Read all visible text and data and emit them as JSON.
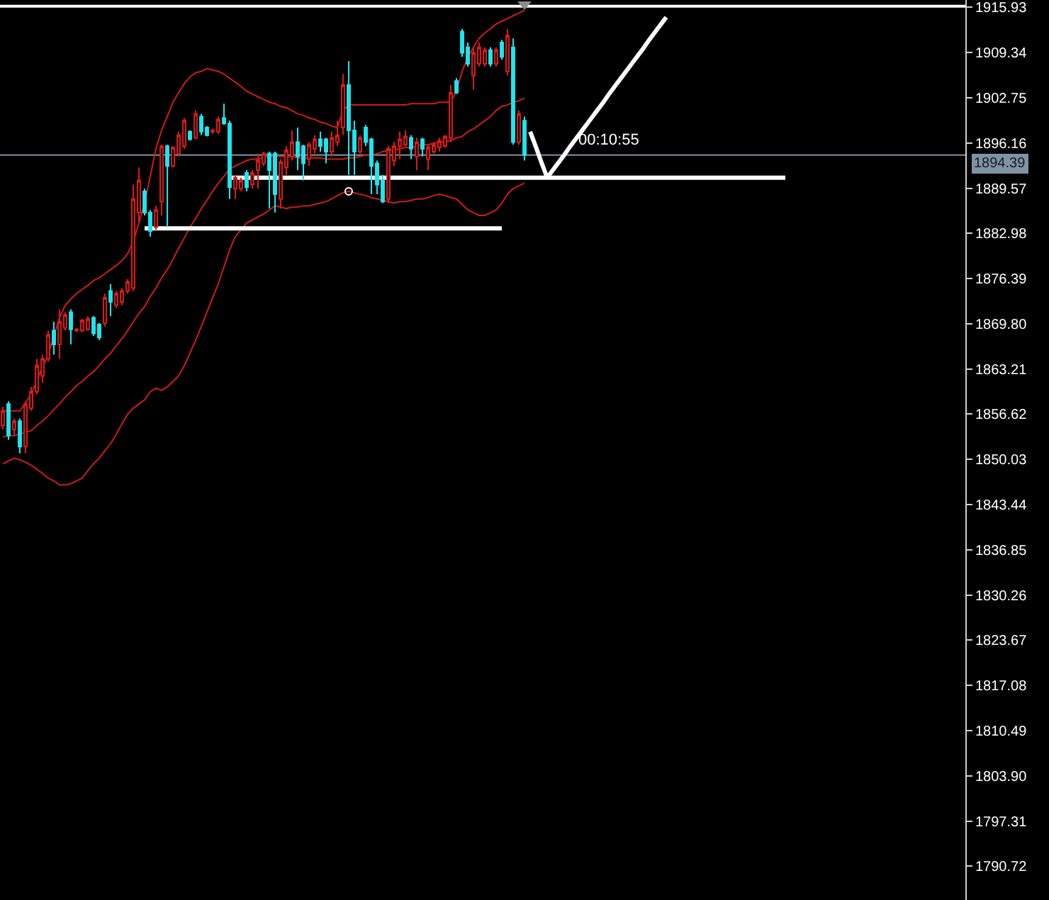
{
  "chart_data": {
    "type": "candlestick",
    "categories": [
      null,
      null,
      null,
      null,
      null,
      null,
      null,
      null,
      null,
      null,
      null,
      null,
      null,
      null,
      null,
      null,
      null,
      null,
      null,
      null,
      null,
      null,
      null,
      null,
      null,
      null,
      null,
      null,
      null,
      null,
      null,
      null,
      null,
      null,
      null,
      null,
      null,
      null,
      null,
      null,
      null,
      null,
      null,
      null,
      null,
      null,
      null,
      null,
      null,
      null,
      null,
      null,
      null,
      null,
      null,
      null,
      null,
      null,
      null,
      null,
      null,
      null,
      null,
      null,
      null,
      null,
      null,
      null,
      null,
      null,
      null,
      null,
      null,
      null,
      null,
      null,
      null,
      null,
      null,
      null,
      null,
      null,
      null,
      null,
      null,
      null,
      null,
      null,
      null,
      null,
      null,
      null,
      null,
      null,
      null,
      null,
      null,
      null,
      null,
      null,
      null,
      null,
      null,
      null,
      null,
      null,
      null,
      null,
      null,
      null,
      null,
      null,
      null,
      null,
      null,
      null,
      null,
      null,
      null,
      null,
      null,
      null,
      null,
      null,
      null,
      null,
      null,
      null,
      null,
      null,
      null,
      null,
      null,
      null,
      null,
      null,
      null,
      null,
      null
    ],
    "ohlc": [
      [
        1855.0,
        1857.7,
        1854.4,
        1857.1
      ],
      [
        1858.1,
        1858.5,
        1852.9,
        1853.5
      ],
      [
        1854.4,
        1856.0,
        1853.5,
        1855.6
      ],
      [
        1855.6,
        1856.0,
        1850.9,
        1851.9
      ],
      [
        1851.9,
        1858.5,
        1850.9,
        1858.1
      ],
      [
        1857.5,
        1860.6,
        1857.1,
        1859.9
      ],
      [
        1859.9,
        1864.7,
        1859.5,
        1863.7
      ],
      [
        1862.2,
        1865.3,
        1861.2,
        1864.7
      ],
      [
        1864.7,
        1868.8,
        1864.3,
        1868.2
      ],
      [
        1868.8,
        1870.1,
        1865.3,
        1866.8
      ],
      [
        1866.8,
        1871.9,
        1864.7,
        1870.1
      ],
      [
        1869.2,
        1871.5,
        1868.8,
        1871.1
      ],
      [
        1871.5,
        1871.9,
        1866.8,
        1869.0
      ],
      [
        1868.8,
        1869.2,
        1868.6,
        1869.0
      ],
      [
        1868.8,
        1870.5,
        1868.6,
        1870.3
      ],
      [
        1869.0,
        1870.9,
        1868.8,
        1870.5
      ],
      [
        1870.7,
        1870.9,
        1868.0,
        1868.4
      ],
      [
        1869.7,
        1869.9,
        1867.4,
        1867.8
      ],
      [
        1869.9,
        1874.2,
        1869.4,
        1873.6
      ],
      [
        1874.6,
        1875.6,
        1870.9,
        1873.0
      ],
      [
        1872.5,
        1874.6,
        1872.1,
        1874.2
      ],
      [
        1873.0,
        1875.0,
        1872.5,
        1874.6
      ],
      [
        1874.6,
        1876.3,
        1874.2,
        1875.9
      ],
      [
        1875.0,
        1890.1,
        1874.6,
        1888.0
      ],
      [
        1886.0,
        1892.6,
        1884.5,
        1890.7
      ],
      [
        1889.1,
        1889.5,
        1885.6,
        1886.0
      ],
      [
        1886.0,
        1886.4,
        1882.5,
        1883.3
      ],
      [
        1883.9,
        1887.0,
        1883.5,
        1886.4
      ],
      [
        1887.6,
        1895.9,
        1885.6,
        1895.7
      ],
      [
        1895.7,
        1895.9,
        1883.9,
        1892.8
      ],
      [
        1892.8,
        1895.7,
        1892.6,
        1895.5
      ],
      [
        1894.6,
        1897.8,
        1894.2,
        1897.3
      ],
      [
        1895.7,
        1899.8,
        1895.3,
        1899.4
      ],
      [
        1897.8,
        1898.0,
        1896.5,
        1896.7
      ],
      [
        1896.9,
        1900.9,
        1896.7,
        1900.4
      ],
      [
        1900.0,
        1900.4,
        1897.3,
        1897.8
      ],
      [
        1898.4,
        1898.6,
        1897.1,
        1897.3
      ],
      [
        1897.8,
        1898.2,
        1897.5,
        1898.0
      ],
      [
        1897.8,
        1900.0,
        1897.5,
        1899.6
      ],
      [
        1899.8,
        1901.9,
        1898.8,
        1899.0
      ],
      [
        1899.0,
        1899.4,
        1888.0,
        1889.7
      ],
      [
        1889.5,
        1891.5,
        1888.0,
        1891.1
      ],
      [
        1889.5,
        1891.1,
        1889.1,
        1890.7
      ],
      [
        1891.8,
        1892.2,
        1889.1,
        1889.7
      ],
      [
        1890.1,
        1892.2,
        1889.5,
        1891.8
      ],
      [
        1892.2,
        1894.6,
        1889.5,
        1893.6
      ],
      [
        1893.2,
        1894.9,
        1892.8,
        1894.6
      ],
      [
        1894.6,
        1894.9,
        1886.6,
        1892.2
      ],
      [
        1894.6,
        1894.9,
        1886.0,
        1888.7
      ],
      [
        1888.0,
        1893.8,
        1886.6,
        1893.4
      ],
      [
        1892.6,
        1895.7,
        1891.5,
        1895.1
      ],
      [
        1894.2,
        1898.0,
        1893.6,
        1896.3
      ],
      [
        1896.3,
        1898.4,
        1892.2,
        1894.2
      ],
      [
        1895.7,
        1895.9,
        1890.7,
        1893.2
      ],
      [
        1893.8,
        1896.3,
        1892.8,
        1895.9
      ],
      [
        1895.3,
        1897.3,
        1894.6,
        1896.7
      ],
      [
        1896.7,
        1897.8,
        1894.9,
        1895.7
      ],
      [
        1896.7,
        1896.9,
        1893.2,
        1894.9
      ],
      [
        1894.9,
        1897.8,
        1894.2,
        1896.9
      ],
      [
        1896.3,
        1899.4,
        1895.7,
        1897.3
      ],
      [
        1898.4,
        1906.2,
        1897.3,
        1904.6
      ],
      [
        1904.6,
        1908.1,
        1891.5,
        1898.0
      ],
      [
        1898.0,
        1899.4,
        1891.5,
        1894.9
      ],
      [
        1894.9,
        1897.3,
        1894.6,
        1896.9
      ],
      [
        1898.4,
        1898.8,
        1895.7,
        1896.3
      ],
      [
        1896.7,
        1896.9,
        1888.7,
        1892.8
      ],
      [
        1893.2,
        1893.6,
        1888.7,
        1890.1
      ],
      [
        1890.7,
        1891.5,
        1887.4,
        1887.6
      ],
      [
        1888.0,
        1895.7,
        1887.4,
        1895.3
      ],
      [
        1893.6,
        1896.3,
        1892.8,
        1895.7
      ],
      [
        1895.7,
        1897.8,
        1893.8,
        1896.7
      ],
      [
        1895.9,
        1898.0,
        1895.7,
        1897.1
      ],
      [
        1896.9,
        1897.3,
        1893.8,
        1895.3
      ],
      [
        1894.2,
        1896.9,
        1892.2,
        1896.3
      ],
      [
        1896.7,
        1896.9,
        1894.2,
        1895.3
      ],
      [
        1893.8,
        1895.9,
        1892.2,
        1895.5
      ],
      [
        1894.9,
        1896.3,
        1894.6,
        1895.9
      ],
      [
        1895.5,
        1896.9,
        1894.9,
        1896.5
      ],
      [
        1895.7,
        1897.3,
        1895.5,
        1897.1
      ],
      [
        1896.9,
        1904.6,
        1896.3,
        1903.5
      ],
      [
        1905.2,
        1905.6,
        1903.3,
        1903.5
      ],
      [
        1912.4,
        1912.8,
        1908.7,
        1909.3
      ],
      [
        1910.1,
        1910.8,
        1907.3,
        1907.7
      ],
      [
        1906.0,
        1910.1,
        1903.9,
        1909.3
      ],
      [
        1907.7,
        1910.8,
        1907.3,
        1910.1
      ],
      [
        1907.7,
        1910.1,
        1907.3,
        1909.7
      ],
      [
        1909.7,
        1910.1,
        1907.3,
        1907.7
      ],
      [
        1907.7,
        1910.1,
        1907.3,
        1909.7
      ],
      [
        1910.8,
        1911.2,
        1908.3,
        1908.7
      ],
      [
        1906.6,
        1912.8,
        1906.0,
        1911.8
      ],
      [
        1910.1,
        1911.4,
        1895.9,
        1896.3
      ],
      [
        1896.3,
        1900.9,
        1895.9,
        1900.4
      ],
      [
        1899.4,
        1900.0,
        1893.6,
        1894.39
      ],
      null,
      null,
      null,
      null,
      null,
      null,
      null,
      null,
      null,
      null,
      null,
      null,
      null,
      null,
      null,
      null,
      null,
      null,
      null,
      null,
      null,
      null,
      null,
      null,
      null,
      null,
      null,
      null,
      null,
      null,
      null,
      null,
      null,
      null,
      null,
      null,
      null,
      null,
      null,
      null,
      null,
      null,
      null,
      null,
      null,
      null
    ],
    "colors": [
      "#e01818",
      "#1ee6ee",
      "#e01818",
      "#1ee6ee",
      "#e01818",
      "#e01818",
      "#e01818",
      "#e01818",
      "#e01818",
      "#1ee6ee",
      "#e01818",
      "#e01818",
      "#1ee6ee",
      "#e01818",
      "#e01818",
      "#e01818",
      "#1ee6ee",
      "#1ee6ee",
      "#e01818",
      "#1ee6ee",
      "#e01818",
      "#e01818",
      "#e01818",
      "#e01818",
      "#e01818",
      "#1ee6ee",
      "#1ee6ee",
      "#e01818",
      "#e01818",
      "#1ee6ee",
      "#e01818",
      "#e01818",
      "#e01818",
      "#1ee6ee",
      "#e01818",
      "#1ee6ee",
      "#1ee6ee",
      "#e01818",
      "#e01818",
      "#1ee6ee",
      "#1ee6ee",
      "#e01818",
      "#e01818",
      "#1ee6ee",
      "#e01818",
      "#e01818",
      "#e01818",
      "#1ee6ee",
      "#1ee6ee",
      "#e01818",
      "#e01818",
      "#e01818",
      "#1ee6ee",
      "#1ee6ee",
      "#e01818",
      "#e01818",
      "#1ee6ee",
      "#1ee6ee",
      "#e01818",
      "#e01818",
      "#e01818",
      "#1ee6ee",
      "#1ee6ee",
      "#e01818",
      "#1ee6ee",
      "#1ee6ee",
      "#1ee6ee",
      "#1ee6ee",
      "#e01818",
      "#e01818",
      "#e01818",
      "#e01818",
      "#1ee6ee",
      "#e01818",
      "#1ee6ee",
      "#e01818",
      "#e01818",
      "#e01818",
      "#e01818",
      "#e01818",
      "#1ee6ee",
      "#1ee6ee",
      "#1ee6ee",
      "#e01818",
      "#e01818",
      "#e01818",
      "#1ee6ee",
      "#e01818",
      "#1ee6ee",
      "#e01818",
      "#1ee6ee",
      "#e01818",
      "#1ee6ee",
      null,
      null,
      null,
      null,
      null,
      null,
      null,
      null,
      null,
      null,
      null,
      null,
      null,
      null,
      null,
      null,
      null,
      null,
      null,
      null,
      null,
      null,
      null,
      null,
      null,
      null,
      null,
      null,
      null,
      null,
      null,
      null,
      null,
      null,
      null,
      null,
      null,
      null,
      null,
      null,
      null,
      null,
      null,
      null,
      null,
      null
    ],
    "series": [
      {
        "type": "line",
        "color": "#d01a1a",
        "values": [
          1857.1,
          1857.1,
          1857.1,
          1857.1,
          1858.3,
          1859.5,
          1861.6,
          1863.5,
          1865.3,
          1868.0,
          1870.7,
          1872.5,
          1873.4,
          1874.2,
          1874.8,
          1875.4,
          1876.1,
          1876.5,
          1877.1,
          1877.7,
          1878.3,
          1879.0,
          1880.0,
          1881.8,
          1884.5,
          1887.4,
          1891.3,
          1895.3,
          1898.0,
          1900.0,
          1902.1,
          1903.5,
          1904.8,
          1905.8,
          1906.4,
          1906.6,
          1907.0,
          1906.8,
          1906.6,
          1906.2,
          1905.6,
          1905.0,
          1904.4,
          1903.7,
          1903.3,
          1902.9,
          1902.5,
          1902.1,
          1901.9,
          1901.5,
          1901.3,
          1900.9,
          1900.4,
          1900.2,
          1899.8,
          1899.6,
          1899.2,
          1899.0,
          1898.6,
          1898.4,
          1900.9,
          1901.7,
          1901.7,
          1901.7,
          1901.7,
          1901.7,
          1901.7,
          1901.7,
          1901.7,
          1901.7,
          1901.7,
          1901.7,
          1901.9,
          1901.9,
          1901.9,
          1901.9,
          1901.9,
          1902.1,
          1902.1,
          1902.1,
          1903.7,
          1906.6,
          1908.7,
          1910.1,
          1911.4,
          1912.2,
          1912.8,
          1913.5,
          1913.9,
          1914.3,
          1914.7,
          1915.1,
          1915.5,
          null,
          null,
          null,
          null,
          null,
          null,
          null,
          null,
          null,
          null,
          null,
          null,
          null,
          null,
          null,
          null,
          null,
          null,
          null,
          null,
          null,
          null,
          null,
          null,
          null,
          null,
          null,
          null,
          null,
          null,
          null,
          null,
          null,
          null,
          null,
          null,
          null,
          null,
          null,
          null,
          null,
          null,
          null,
          null,
          null,
          null
        ]
      },
      {
        "type": "line",
        "color": "#d01a1a",
        "values": [
          1853.3,
          1853.5,
          1853.5,
          1853.7,
          1854.0,
          1854.2,
          1855.0,
          1855.6,
          1856.4,
          1857.3,
          1858.1,
          1859.1,
          1859.9,
          1860.8,
          1861.4,
          1862.2,
          1862.8,
          1863.7,
          1864.7,
          1865.5,
          1866.6,
          1867.6,
          1868.8,
          1870.1,
          1871.3,
          1872.3,
          1873.8,
          1875.0,
          1876.5,
          1877.7,
          1879.2,
          1880.8,
          1882.3,
          1883.9,
          1885.1,
          1886.6,
          1887.8,
          1889.1,
          1890.3,
          1891.3,
          1892.4,
          1892.8,
          1893.2,
          1893.6,
          1893.8,
          1893.8,
          1894.0,
          1894.2,
          1894.2,
          1894.2,
          1894.2,
          1894.2,
          1894.0,
          1894.0,
          1894.0,
          1894.0,
          1894.0,
          1893.8,
          1893.8,
          1893.8,
          1893.8,
          1894.0,
          1894.0,
          1894.2,
          1894.4,
          1894.4,
          1894.6,
          1894.9,
          1895.1,
          1895.1,
          1895.3,
          1895.5,
          1895.5,
          1895.7,
          1895.9,
          1895.9,
          1896.1,
          1896.3,
          1896.3,
          1896.5,
          1896.9,
          1897.1,
          1897.8,
          1898.2,
          1898.8,
          1899.4,
          1900.0,
          1900.9,
          1901.5,
          1901.7,
          1902.1,
          1902.3,
          1902.7,
          null,
          null,
          null,
          null,
          null,
          null,
          null,
          null,
          null,
          null,
          null,
          null,
          null,
          null,
          null,
          null,
          null,
          null,
          null,
          null,
          null,
          null,
          null,
          null,
          null,
          null,
          null,
          null,
          null,
          null,
          null,
          null,
          null,
          null,
          null,
          null,
          null,
          null,
          null,
          null,
          null,
          null,
          null,
          null,
          null,
          null
        ]
      },
      {
        "type": "line",
        "color": "#d01a1a",
        "values": [
          1849.4,
          1849.8,
          1850.2,
          1850.0,
          1849.6,
          1849.2,
          1848.6,
          1848.0,
          1847.3,
          1846.9,
          1846.3,
          1846.3,
          1846.5,
          1846.9,
          1847.3,
          1848.4,
          1849.4,
          1850.2,
          1851.3,
          1852.3,
          1853.7,
          1855.2,
          1856.6,
          1857.5,
          1858.1,
          1858.7,
          1859.9,
          1860.4,
          1860.1,
          1860.6,
          1861.4,
          1862.2,
          1863.7,
          1865.5,
          1867.4,
          1869.4,
          1871.5,
          1873.6,
          1875.6,
          1878.1,
          1880.6,
          1882.5,
          1883.5,
          1884.5,
          1884.9,
          1885.4,
          1885.8,
          1886.4,
          1887.0,
          1886.8,
          1886.6,
          1886.8,
          1886.8,
          1887.0,
          1887.0,
          1887.2,
          1887.4,
          1887.6,
          1888.0,
          1888.5,
          1888.9,
          1889.1,
          1888.9,
          1888.7,
          1888.5,
          1888.2,
          1888.0,
          1887.8,
          1887.6,
          1887.4,
          1887.6,
          1887.6,
          1887.8,
          1888.0,
          1888.0,
          1888.2,
          1888.5,
          1888.7,
          1888.5,
          1888.2,
          1888.0,
          1887.2,
          1886.4,
          1886.0,
          1885.6,
          1885.6,
          1886.0,
          1886.4,
          1887.4,
          1888.7,
          1889.5,
          1889.9,
          1890.3,
          null,
          null,
          null,
          null,
          null,
          null,
          null,
          null,
          null,
          null,
          null,
          null,
          null,
          null,
          null,
          null,
          null,
          null,
          null,
          null,
          null,
          null,
          null,
          null,
          null,
          null,
          null,
          null,
          null,
          null,
          null,
          null,
          null,
          null,
          null,
          null,
          null,
          null,
          null,
          null,
          null,
          null,
          null,
          null,
          null,
          null
        ]
      },
      {
        "type": "line",
        "color": "#ffffff",
        "values": [
          null,
          null,
          null,
          null,
          null,
          null,
          null,
          null,
          null,
          null,
          null,
          null,
          null,
          null,
          null,
          null,
          null,
          null,
          null,
          null,
          null,
          null,
          null,
          null,
          null,
          1883.7,
          1883.7,
          1883.7,
          1883.7,
          1883.7,
          1883.7,
          1883.7,
          1883.7,
          1883.7,
          1883.7,
          1883.7,
          1883.7,
          1883.7,
          1883.7,
          1883.7,
          1883.7,
          1883.7,
          1883.7,
          1883.7,
          1883.7,
          1883.7,
          1883.7,
          1883.7,
          1883.7,
          1883.7,
          1883.7,
          1883.7,
          1883.7,
          1883.7,
          1883.7,
          1883.7,
          1883.7,
          1883.7,
          1883.7,
          1883.7,
          1883.7,
          1883.7,
          1883.7,
          1883.7,
          1883.7,
          1883.7,
          1883.7,
          1883.7,
          1883.7,
          1883.7,
          1883.7,
          1883.7,
          1883.7,
          1883.7,
          1883.7,
          1883.7,
          1883.7,
          1883.7,
          1883.7,
          1883.7,
          1883.7,
          1883.7,
          1883.7,
          1883.7,
          1883.7,
          1883.7,
          1883.7,
          1883.7,
          1883.7,
          null,
          null,
          null,
          null,
          null,
          null,
          null,
          null,
          null,
          null,
          null,
          null,
          null,
          null,
          null,
          null,
          null,
          null,
          null,
          null,
          null,
          null,
          null,
          null,
          null,
          null,
          null,
          null,
          null,
          null,
          null,
          null,
          null,
          null,
          null,
          null,
          null,
          null,
          null,
          null,
          null,
          null,
          null,
          null,
          null,
          null,
          null,
          null,
          null,
          null
        ]
      },
      {
        "type": "line",
        "color": "#ffffff",
        "values": [
          null,
          null,
          null,
          null,
          null,
          null,
          null,
          null,
          null,
          null,
          null,
          null,
          null,
          null,
          null,
          null,
          null,
          null,
          null,
          null,
          null,
          null,
          null,
          null,
          null,
          null,
          null,
          null,
          null,
          null,
          null,
          null,
          null,
          null,
          null,
          null,
          null,
          null,
          null,
          null,
          1891.1,
          1891.1,
          1891.1,
          1891.1,
          1891.1,
          1891.1,
          1891.1,
          1891.1,
          1891.1,
          1891.1,
          1891.1,
          1891.1,
          1891.1,
          1891.1,
          1891.1,
          1891.1,
          1891.1,
          1891.1,
          1891.1,
          1891.1,
          1891.1,
          1891.1,
          1891.1,
          1891.1,
          1891.1,
          1891.1,
          1891.1,
          1891.1,
          1891.1,
          1891.1,
          1891.1,
          1891.1,
          1891.1,
          1891.1,
          1891.1,
          1891.1,
          1891.1,
          1891.1,
          1891.1,
          1891.1,
          1891.1,
          1891.1,
          1891.1,
          1891.1,
          1891.1,
          1891.1,
          1891.1,
          1891.1,
          1891.1,
          1891.1,
          1891.1,
          1891.1,
          1891.1,
          1891.1,
          1891.1,
          1891.1,
          1891.1,
          1891.1,
          1891.1,
          1891.1,
          1891.1,
          1891.1,
          1891.1,
          1891.1,
          1891.1,
          1891.1,
          1891.1,
          1891.1,
          1891.1,
          1891.1,
          1891.1,
          1891.1,
          1891.1,
          1891.1,
          1891.1,
          1891.1,
          1891.1,
          1891.1,
          1891.1,
          1891.1,
          1891.1,
          1891.1,
          1891.1,
          1891.1,
          1891.1,
          1891.1,
          1891.1,
          1891.1,
          1891.1,
          1891.1,
          1891.1,
          1891.1,
          1891.1,
          1891.1,
          1891.1,
          1891.1,
          1891.1,
          1891.1,
          1891.1
        ]
      },
      {
        "type": "line",
        "color": "#ffffff",
        "values": [
          null,
          null,
          null,
          null,
          null,
          null,
          null,
          null,
          null,
          null,
          null,
          null,
          null,
          null,
          null,
          null,
          null,
          null,
          null,
          null,
          null,
          null,
          null,
          null,
          null,
          null,
          null,
          null,
          null,
          null,
          null,
          null,
          null,
          null,
          null,
          null,
          null,
          null,
          null,
          null,
          null,
          null,
          null,
          null,
          null,
          null,
          null,
          null,
          null,
          null,
          null,
          null,
          null,
          null,
          null,
          null,
          null,
          null,
          null,
          null,
          null,
          null,
          null,
          null,
          null,
          null,
          null,
          null,
          null,
          null,
          null,
          null,
          null,
          null,
          null,
          null,
          null,
          null,
          null,
          null,
          null,
          null,
          null,
          null,
          null,
          null,
          null,
          null,
          null,
          null,
          null,
          null,
          null,
          1897.8,
          1895.6,
          1893.3,
          1891.1,
          1892.2,
          1893.3,
          1894.4,
          1895.6,
          1896.7,
          1897.8,
          1898.9,
          1900.0,
          1901.1,
          1902.2,
          1903.4,
          1904.5,
          1905.6,
          1906.7,
          1907.8,
          1908.9,
          1910.0,
          1911.2,
          1912.3,
          1913.4,
          1914.5,
          null,
          null,
          null,
          null,
          null,
          null,
          null,
          null,
          null,
          null,
          null,
          null,
          null,
          null,
          null,
          null,
          null,
          null,
          null,
          null,
          null
        ]
      },
      {
        "type": "scatter",
        "color": "#ffffff",
        "marker": "circle",
        "values": [
          null,
          null,
          null,
          null,
          null,
          null,
          null,
          null,
          null,
          null,
          null,
          null,
          null,
          null,
          null,
          null,
          null,
          null,
          null,
          null,
          null,
          null,
          null,
          null,
          null,
          null,
          null,
          null,
          null,
          null,
          null,
          null,
          null,
          null,
          null,
          null,
          null,
          null,
          null,
          null,
          null,
          null,
          null,
          null,
          null,
          null,
          null,
          null,
          null,
          null,
          null,
          null,
          null,
          null,
          null,
          null,
          null,
          null,
          null,
          null,
          null,
          1889.1,
          null,
          null,
          null,
          null,
          null,
          null,
          null,
          null,
          null,
          null,
          null,
          null,
          null,
          null,
          null,
          null,
          null,
          null,
          null,
          null,
          null,
          null,
          null,
          null,
          null,
          null,
          null,
          null,
          null,
          null,
          null,
          null,
          null,
          null,
          null,
          null,
          null,
          null,
          null,
          null,
          null,
          null,
          null,
          null,
          null,
          null,
          null,
          null,
          null,
          null,
          null,
          null,
          null,
          null,
          null,
          null,
          null,
          null,
          null,
          null,
          null,
          null,
          null,
          null,
          null,
          null,
          null,
          null,
          null,
          null,
          null,
          null,
          null,
          null,
          null,
          null,
          null
        ]
      }
    ],
    "ylim": [
      1785.8,
      1917.0
    ],
    "yticks": [
      1915.93,
      1909.34,
      1902.75,
      1896.16,
      1889.57,
      1882.98,
      1876.39,
      {
        "value": 1869.8,
        "label": "1869.80"
      },
      1863.21,
      1856.62,
      1850.03,
      1843.44,
      1836.85,
      1830.26,
      1823.67,
      1817.08,
      1810.49,
      {
        "value": 1803.9,
        "label": "1803.90"
      },
      1797.31,
      1790.72
    ],
    "ref_lines": [
      {
        "axis": "y",
        "value": 1894.39,
        "label": "1894.39",
        "color": "#7f93a6"
      },
      {
        "axis": "y",
        "value": 1916.1,
        "color": "#ffffff"
      }
    ],
    "annotations": [
      {
        "text": "00:10:55",
        "y": 1894.39
      }
    ],
    "tick_labels": "y"
  }
}
